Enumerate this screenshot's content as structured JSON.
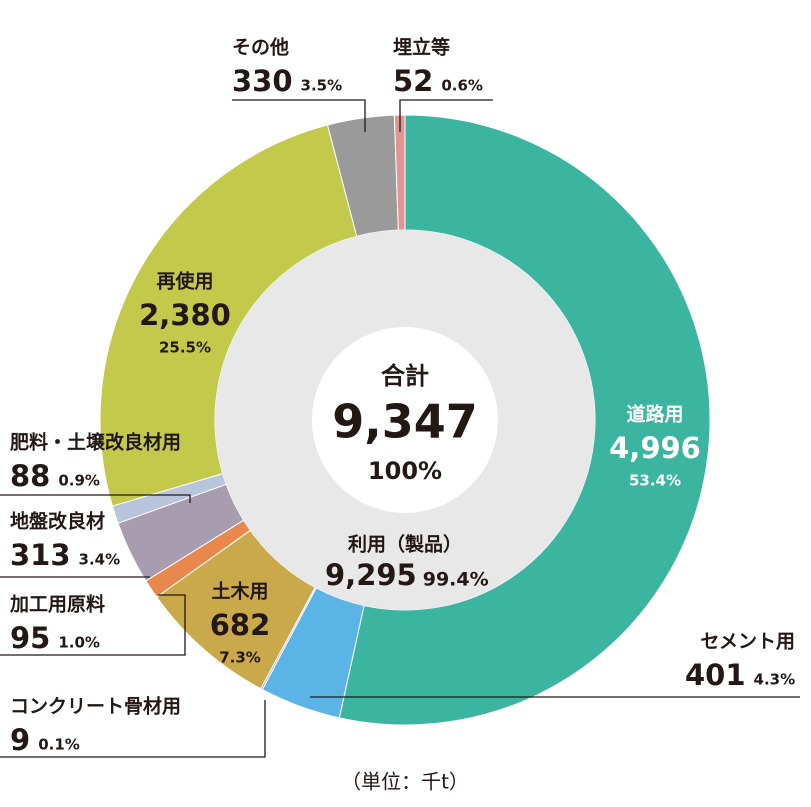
{
  "chart_data": {
    "type": "donut",
    "categories": [
      "道路用",
      "セメント用",
      "コンクリート骨材用",
      "土木用",
      "加工用原料",
      "地盤改良材",
      "肥料・土壌改良材用",
      "再使用",
      "その他",
      "埋立等"
    ],
    "values": [
      4996,
      401,
      9,
      682,
      95,
      313,
      88,
      2380,
      330,
      52
    ],
    "value_labels": [
      "4,996",
      "401",
      "9",
      "682",
      "95",
      "313",
      "88",
      "2,380",
      "330",
      "52"
    ],
    "percents": [
      53.4,
      4.3,
      0.1,
      7.3,
      1.0,
      3.4,
      0.9,
      25.5,
      3.5,
      0.6
    ],
    "percent_labels": [
      "53.4%",
      "4.3%",
      "0.1%",
      "7.3%",
      "1.0%",
      "3.4%",
      "0.9%",
      "25.5%",
      "3.5%",
      "0.6%"
    ],
    "colors": [
      "#3bb5a0",
      "#5ab4e5",
      "#c88ad0",
      "#c9a94a",
      "#e8884d",
      "#a89cb0",
      "#b8c4dc",
      "#c3c94a",
      "#9a9a9a",
      "#e09494"
    ],
    "total": {
      "label": "合計",
      "value": 9347,
      "value_label": "9,347",
      "percent": 100,
      "percent_label": "100%"
    },
    "utilized": {
      "label": "利用（製品）",
      "value": 9295,
      "value_label": "9,295",
      "percent": 99.4,
      "percent_label": "99.4%"
    },
    "unit_note": "（単位：千t）"
  }
}
